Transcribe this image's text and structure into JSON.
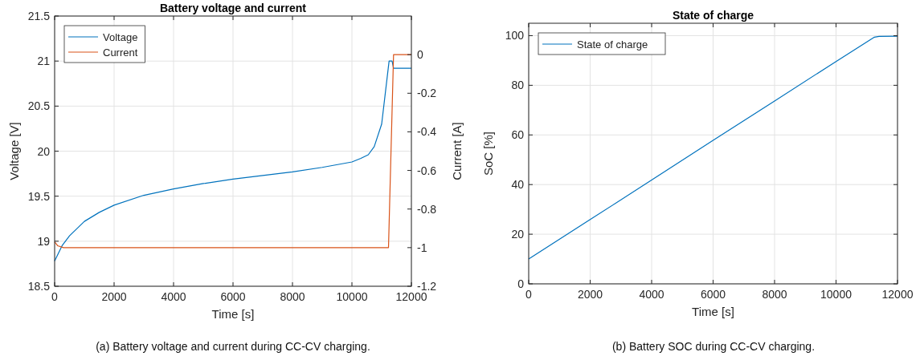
{
  "chart_data": [
    {
      "type": "line",
      "title": "Battery voltage and current",
      "xlabel": "Time [s]",
      "ylabel": "Voltage [V]",
      "y2label": "Current [A]",
      "annotations": [
        "(a) Battery voltage and current during CC-CV charging."
      ],
      "xlim": [
        0,
        12000
      ],
      "xticks": [
        0,
        2000,
        4000,
        6000,
        8000,
        10000,
        12000
      ],
      "ylim": [
        18.5,
        21.5
      ],
      "yticks": [
        18.5,
        19,
        19.5,
        20,
        20.5,
        21,
        21.5
      ],
      "y2lim": [
        -1.2,
        0.2
      ],
      "y2ticks": [
        -1.2,
        -1,
        -0.8,
        -0.6,
        -0.4,
        -0.2,
        0
      ],
      "grid": true,
      "legend": "top left",
      "series": [
        {
          "name": "Voltage",
          "color": "#0072bd",
          "x": [
            0,
            250,
            500,
            1000,
            1500,
            2000,
            3000,
            4000,
            5000,
            6000,
            7000,
            8000,
            9000,
            10000,
            10300,
            10550,
            10750,
            11000,
            11250,
            11350,
            11400,
            12000
          ],
          "values": [
            18.78,
            18.95,
            19.06,
            19.22,
            19.32,
            19.4,
            19.51,
            19.58,
            19.64,
            19.69,
            19.73,
            19.77,
            19.82,
            19.88,
            19.92,
            19.96,
            20.05,
            20.3,
            21.0,
            21.0,
            20.92,
            20.92
          ]
        },
        {
          "name": "Current",
          "color": "#d95319",
          "axis": "y2",
          "x": [
            0,
            100,
            300,
            11230,
            11400,
            12000
          ],
          "values": [
            -0.97,
            -0.99,
            -1.0,
            -1.0,
            0,
            0
          ]
        }
      ]
    },
    {
      "type": "line",
      "title": "State of charge",
      "xlabel": "Time [s]",
      "ylabel": "SoC [%]",
      "annotations": [
        "(b) Battery SOC during CC-CV charging."
      ],
      "xlim": [
        0,
        12000
      ],
      "xticks": [
        0,
        2000,
        4000,
        6000,
        8000,
        10000,
        12000
      ],
      "ylim": [
        0,
        105
      ],
      "yticks": [
        0,
        20,
        40,
        60,
        80,
        100
      ],
      "grid": true,
      "legend": "top left",
      "series": [
        {
          "name": "State of charge",
          "color": "#0072bd",
          "x": [
            0,
            2000,
            4000,
            6000,
            8000,
            10000,
            11250,
            11400,
            12000
          ],
          "values": [
            10,
            25.9,
            41.8,
            57.8,
            73.7,
            89.6,
            99.4,
            99.7,
            99.8
          ]
        }
      ]
    }
  ]
}
